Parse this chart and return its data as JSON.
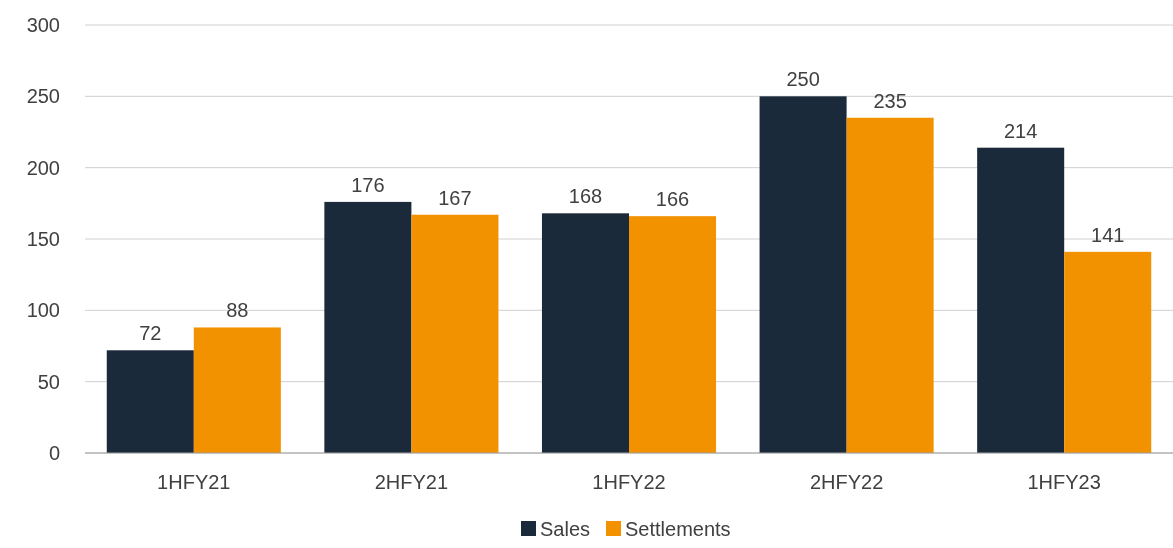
{
  "chart_data": {
    "type": "bar",
    "categories": [
      "1HFY21",
      "2HFY21",
      "1HFY22",
      "2HFY22",
      "1HFY23"
    ],
    "series": [
      {
        "name": "Sales",
        "color": "#1b2a3b",
        "values": [
          72,
          176,
          168,
          250,
          214
        ]
      },
      {
        "name": "Settlements",
        "color": "#f39200",
        "values": [
          88,
          167,
          166,
          235,
          141
        ]
      }
    ],
    "ylim": [
      0,
      300
    ],
    "yticks": [
      0,
      50,
      100,
      150,
      200,
      250,
      300
    ],
    "grid": "y",
    "legend": "bottom",
    "data_labels": true
  }
}
